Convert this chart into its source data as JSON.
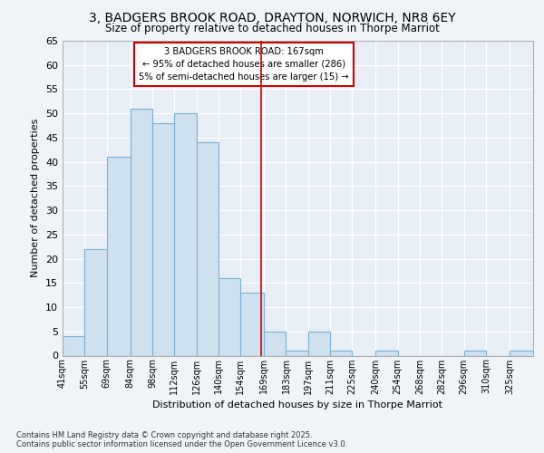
{
  "title1": "3, BADGERS BROOK ROAD, DRAYTON, NORWICH, NR8 6EY",
  "title2": "Size of property relative to detached houses in Thorpe Marriot",
  "xlabel": "Distribution of detached houses by size in Thorpe Marriot",
  "ylabel": "Number of detached properties",
  "bins": [
    41,
    55,
    69,
    84,
    98,
    112,
    126,
    140,
    154,
    169,
    183,
    197,
    211,
    225,
    240,
    254,
    268,
    282,
    296,
    310,
    325
  ],
  "counts": [
    4,
    22,
    41,
    51,
    48,
    50,
    44,
    16,
    13,
    5,
    1,
    5,
    1,
    0,
    1,
    0,
    0,
    0,
    1,
    0,
    1
  ],
  "bar_color": "#cfe0ef",
  "bar_edge_color": "#7ab0d4",
  "vline_x": 167,
  "vline_color": "#cc0000",
  "annotation_title": "3 BADGERS BROOK ROAD: 167sqm",
  "annotation_line1": "← 95% of detached houses are smaller (286)",
  "annotation_line2": "5% of semi-detached houses are larger (15) →",
  "annotation_box_color": "#ffffff",
  "annotation_box_edge": "#cc0000",
  "ylim": [
    0,
    65
  ],
  "yticks": [
    0,
    5,
    10,
    15,
    20,
    25,
    30,
    35,
    40,
    45,
    50,
    55,
    60,
    65
  ],
  "bg_color": "#e8eef5",
  "fig_bg_color": "#f0f4f8",
  "footer1": "Contains HM Land Registry data © Crown copyright and database right 2025.",
  "footer2": "Contains public sector information licensed under the Open Government Licence v3.0.",
  "tick_labels": [
    "41sqm",
    "55sqm",
    "69sqm",
    "84sqm",
    "98sqm",
    "112sqm",
    "126sqm",
    "140sqm",
    "154sqm",
    "169sqm",
    "183sqm",
    "197sqm",
    "211sqm",
    "225sqm",
    "240sqm",
    "254sqm",
    "268sqm",
    "282sqm",
    "296sqm",
    "310sqm",
    "325sqm"
  ]
}
